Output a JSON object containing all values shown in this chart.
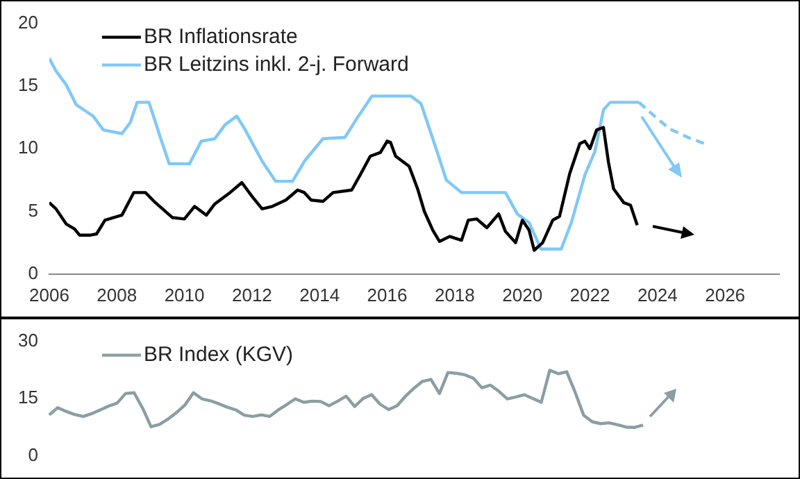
{
  "chart_data": [
    {
      "type": "line",
      "xlim": [
        2006,
        2027.6
      ],
      "xticks": [
        2006,
        2008,
        2010,
        2012,
        2014,
        2016,
        2018,
        2020,
        2022,
        2024,
        2026
      ],
      "ylim": [
        0,
        20
      ],
      "yticks": [
        0,
        5,
        10,
        15,
        20
      ],
      "grid": false,
      "legend": "top left",
      "marker": "none",
      "series": [
        {
          "name": "BR Inflationsrate",
          "color": "#000000",
          "x": [
            2006.0,
            2006.2,
            2006.5,
            2006.75,
            2006.9,
            2007.2,
            2007.4,
            2007.65,
            2008.15,
            2008.5,
            2008.85,
            2009.1,
            2009.65,
            2010.0,
            2010.3,
            2010.65,
            2010.9,
            2011.35,
            2011.7,
            2012.0,
            2012.3,
            2012.6,
            2013.0,
            2013.35,
            2013.55,
            2013.75,
            2014.1,
            2014.4,
            2014.95,
            2015.2,
            2015.5,
            2015.8,
            2016.0,
            2016.1,
            2016.25,
            2016.45,
            2016.65,
            2016.9,
            2017.1,
            2017.35,
            2017.55,
            2017.85,
            2018.2,
            2018.4,
            2018.65,
            2018.95,
            2019.3,
            2019.5,
            2019.8,
            2020.0,
            2020.2,
            2020.35,
            2020.6,
            2020.9,
            2021.1,
            2021.4,
            2021.7,
            2021.85,
            2022.0,
            2022.2,
            2022.4,
            2022.55,
            2022.7,
            2023.0,
            2023.2,
            2023.4
          ],
          "values": [
            5.7,
            5.2,
            4.0,
            3.6,
            3.1,
            3.1,
            3.2,
            4.3,
            4.7,
            6.5,
            6.5,
            5.8,
            4.5,
            4.4,
            5.4,
            4.7,
            5.6,
            6.5,
            7.3,
            6.2,
            5.2,
            5.4,
            5.9,
            6.7,
            6.5,
            5.9,
            5.8,
            6.5,
            6.7,
            7.9,
            9.4,
            9.7,
            10.6,
            10.5,
            9.4,
            9.0,
            8.6,
            6.8,
            5.0,
            3.5,
            2.6,
            3.0,
            2.7,
            4.3,
            4.4,
            3.7,
            4.8,
            3.4,
            2.5,
            4.3,
            3.5,
            1.9,
            2.5,
            4.3,
            4.6,
            8.0,
            10.4,
            10.6,
            10.0,
            11.5,
            11.7,
            8.9,
            6.8,
            5.7,
            5.5,
            3.9
          ]
        },
        {
          "name": "BR Leitzins inkl. 2-j. Forward",
          "color": "#7fc8f8",
          "x": [
            2006.0,
            2006.2,
            2006.5,
            2006.8,
            2007.3,
            2007.6,
            2008.15,
            2008.4,
            2008.6,
            2008.95,
            2009.3,
            2009.55,
            2010.15,
            2010.5,
            2010.9,
            2011.2,
            2011.55,
            2011.8,
            2012.3,
            2012.7,
            2013.2,
            2013.55,
            2014.1,
            2014.75,
            2015.1,
            2015.55,
            2016.5,
            2016.7,
            2017.0,
            2017.4,
            2017.75,
            2018.2,
            2019.5,
            2019.85,
            2020.2,
            2020.55,
            2021.15,
            2021.45,
            2021.85,
            2022.15,
            2022.4,
            2022.6,
            2023.45
          ],
          "values": [
            17.2,
            16.2,
            15.1,
            13.5,
            12.6,
            11.5,
            11.2,
            12.1,
            13.7,
            13.7,
            10.8,
            8.8,
            8.8,
            10.6,
            10.8,
            11.9,
            12.6,
            11.5,
            9.0,
            7.4,
            7.4,
            9.0,
            10.8,
            10.9,
            12.4,
            14.2,
            14.2,
            14.2,
            13.6,
            10.4,
            7.5,
            6.5,
            6.5,
            4.8,
            4.1,
            2.0,
            2.0,
            4.1,
            7.9,
            9.8,
            13.1,
            13.7,
            13.7
          ]
        },
        {
          "color": "#7fc8f8",
          "line_style": "dashed",
          "x": [
            2023.45,
            2023.95,
            2024.35,
            2024.9,
            2025.5
          ],
          "values": [
            13.7,
            12.5,
            11.6,
            10.9,
            10.3
          ]
        }
      ]
    },
    {
      "type": "line",
      "categories": [
        null,
        null,
        null,
        null,
        null,
        null,
        null,
        null,
        null,
        null,
        null,
        null,
        null,
        null,
        null,
        null,
        null,
        null,
        null,
        null,
        null,
        null,
        null,
        null,
        null,
        null,
        null,
        null,
        null,
        null,
        null,
        null,
        null,
        null,
        null,
        null,
        null,
        null,
        null,
        null,
        null,
        null,
        null,
        null,
        null,
        null,
        null,
        null,
        null,
        null,
        null,
        null,
        null,
        null,
        null,
        null,
        null,
        null,
        null,
        null,
        null,
        null,
        null,
        null,
        null,
        null,
        null,
        null,
        null,
        null,
        null
      ],
      "ylim": [
        0,
        30
      ],
      "yticks": [
        0,
        15,
        30
      ],
      "tick_labels": "y",
      "grid": false,
      "legend": "top left",
      "marker": "none",
      "series": [
        {
          "name": "BR Index (KGV)",
          "color": "#8a9ea4",
          "values": [
            10.7,
            12.6,
            11.6,
            10.8,
            10.3,
            11.0,
            12.0,
            13.0,
            13.8,
            16.3,
            16.5,
            12.5,
            7.6,
            8.2,
            9.6,
            11.3,
            13.3,
            16.5,
            14.9,
            14.4,
            13.6,
            12.7,
            12.0,
            10.6,
            10.3,
            10.7,
            10.3,
            12.0,
            13.4,
            14.9,
            14.0,
            14.3,
            14.2,
            13.1,
            14.3,
            15.6,
            12.9,
            15.0,
            16.0,
            13.5,
            12.1,
            13.1,
            15.6,
            17.7,
            19.5,
            20.0,
            16.3,
            21.8,
            21.6,
            21.2,
            20.3,
            17.8,
            18.5,
            16.9,
            14.9,
            15.4,
            16.0,
            15.0,
            14.0,
            22.4,
            21.5,
            22.0,
            16.6,
            10.6,
            8.9,
            8.4,
            8.6,
            8.1,
            7.5,
            7.4,
            8.0
          ]
        }
      ]
    }
  ]
}
